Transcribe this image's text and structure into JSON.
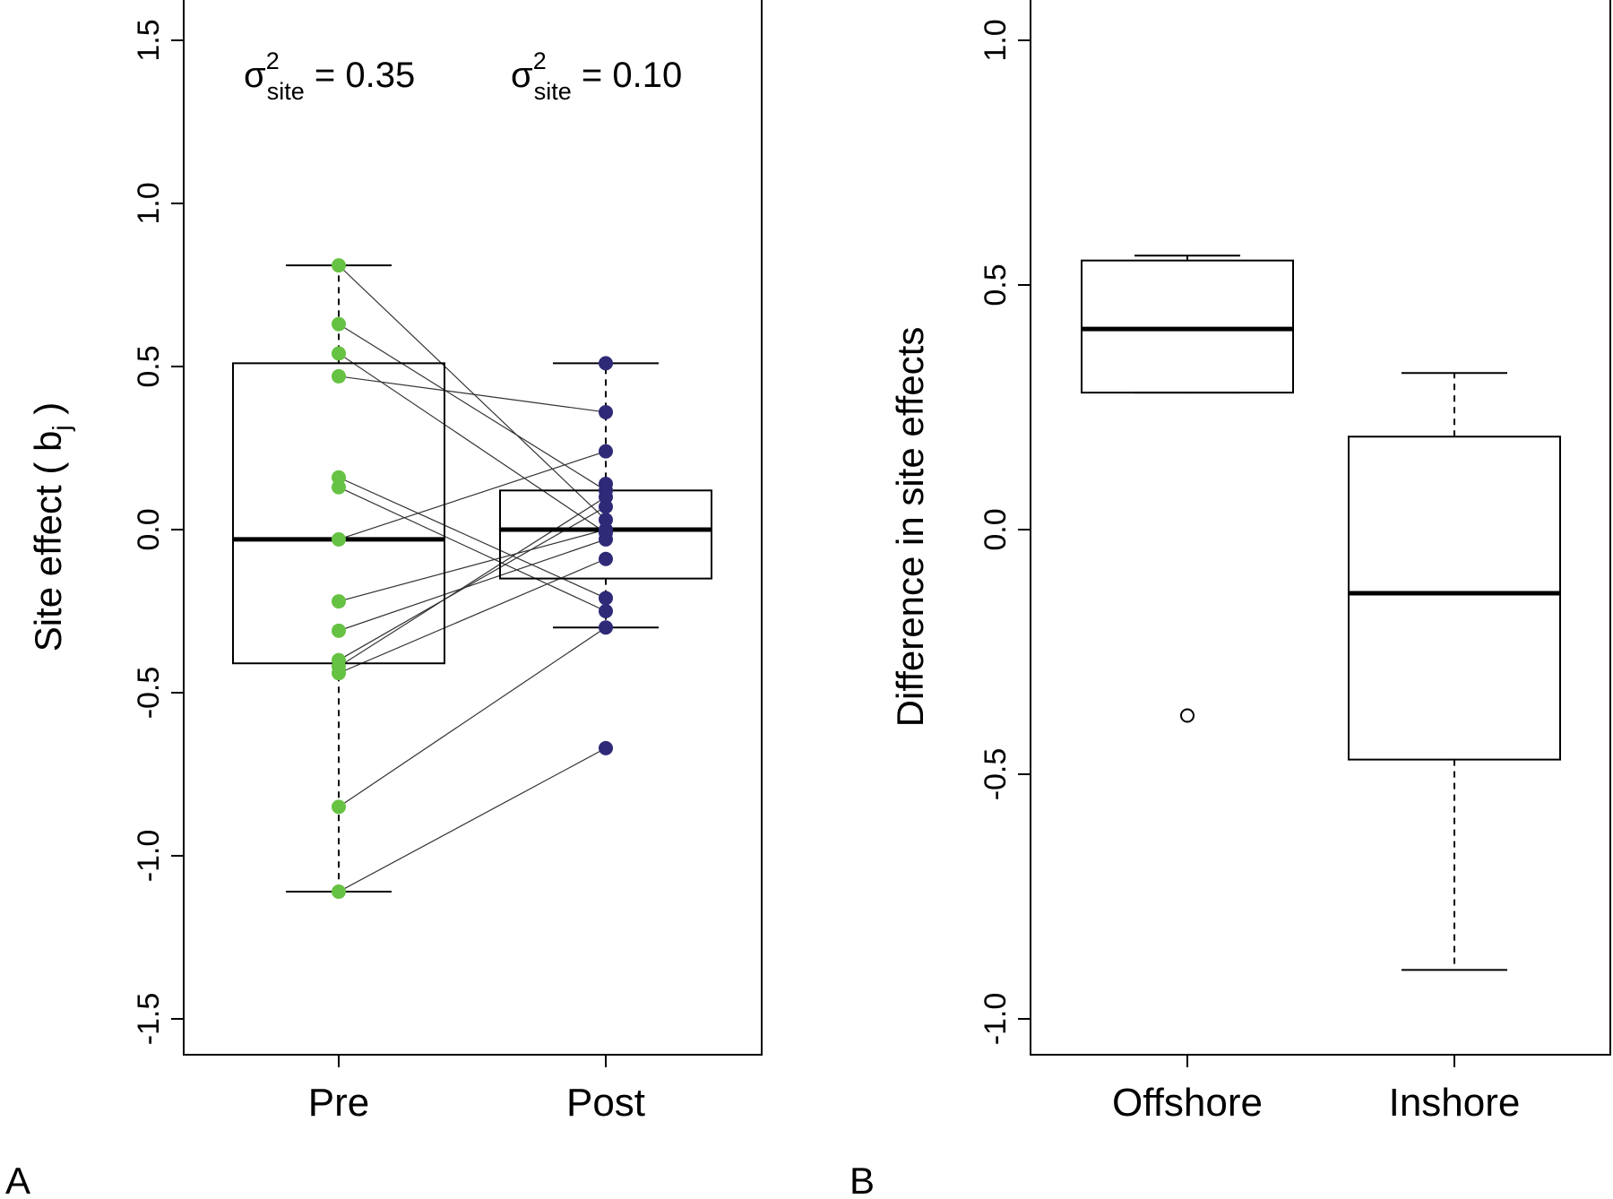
{
  "panel_labels": [
    "A",
    "B"
  ],
  "chart_data": [
    {
      "type": "boxplot",
      "panel": "A",
      "title": "",
      "xlabel": "",
      "ylabel": "Site effect ( b",
      "ylabel_sub": "j",
      "ylabel_close": " )",
      "ylim": [
        -1.6,
        1.6
      ],
      "yticks": [
        -1.5,
        -1.0,
        -0.5,
        0.0,
        0.5,
        1.0,
        1.5
      ],
      "ytick_labels": [
        "-1.5",
        "-1.0",
        "-0.5",
        "0.0",
        "0.5",
        "1.0",
        "1.5"
      ],
      "categories": [
        "Pre",
        "Post"
      ],
      "boxes": [
        {
          "name": "Pre",
          "whisker_low": -1.11,
          "q1": -0.41,
          "median": -0.03,
          "q3": 0.51,
          "whisker_high": 0.81
        },
        {
          "name": "Post",
          "whisker_low": -0.3,
          "q1": -0.15,
          "median": 0.0,
          "q3": 0.12,
          "whisker_high": 0.51
        }
      ],
      "annotations": [
        {
          "sigma": "σ",
          "sup": "2",
          "sub": "site",
          "text": " = 0.35",
          "category": "Pre"
        },
        {
          "sigma": "σ",
          "sup": "2",
          "sub": "site",
          "text": " = 0.10",
          "category": "Post"
        }
      ],
      "points_color": {
        "Pre": "#66c242",
        "Post": "#2e2a78"
      },
      "pairs": [
        {
          "pre": 0.81,
          "post": 0.03
        },
        {
          "pre": 0.63,
          "post": 0.12
        },
        {
          "pre": 0.54,
          "post": -0.01
        },
        {
          "pre": 0.47,
          "post": 0.36
        },
        {
          "pre": 0.16,
          "post": -0.21
        },
        {
          "pre": 0.13,
          "post": -0.25
        },
        {
          "pre": -0.03,
          "post": 0.24
        },
        {
          "pre": -0.22,
          "post": 0.0
        },
        {
          "pre": -0.31,
          "post": -0.03
        },
        {
          "pre": -0.4,
          "post": 0.07
        },
        {
          "pre": -0.42,
          "post": 0.1
        },
        {
          "pre": -0.44,
          "post": -0.09
        },
        {
          "pre": -0.85,
          "post": -0.3
        },
        {
          "pre": -1.11,
          "post": -0.67
        }
      ],
      "extra_post_points": [
        0.51,
        0.14
      ],
      "grid": false
    },
    {
      "type": "boxplot",
      "panel": "B",
      "title": "",
      "xlabel": "",
      "ylabel": "Difference in site effects",
      "ylim": [
        -1.08,
        1.08
      ],
      "yticks": [
        -1.0,
        -0.5,
        0.0,
        0.5,
        1.0
      ],
      "ytick_labels": [
        "-1.0",
        "-0.5",
        "0.0",
        "0.5",
        "1.0"
      ],
      "categories": [
        "Offshore",
        "Inshore"
      ],
      "boxes": [
        {
          "name": "Offshore",
          "whisker_low": 0.28,
          "q1": 0.28,
          "median": 0.41,
          "q3": 0.55,
          "whisker_high": 0.56,
          "outliers": [
            -0.38
          ]
        },
        {
          "name": "Inshore",
          "whisker_low": -0.9,
          "q1": -0.47,
          "median": -0.13,
          "q3": 0.19,
          "whisker_high": 0.32,
          "outliers": []
        }
      ],
      "grid": false
    }
  ]
}
